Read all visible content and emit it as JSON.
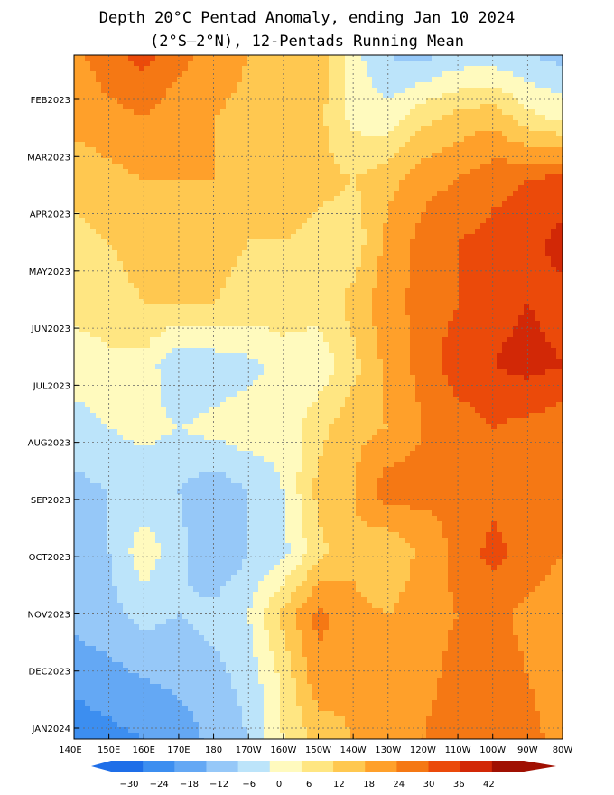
{
  "chart_data": {
    "type": "heatmap",
    "title": "Depth 20°C Pentad Anomaly, ending Jan 10 2024",
    "subtitle": "(2°S–2°N), 12-Pentads Running Mean",
    "x_ticks": [
      "140E",
      "150E",
      "160E",
      "170E",
      "180",
      "170W",
      "160W",
      "150W",
      "140W",
      "130W",
      "120W",
      "110W",
      "100W",
      "90W",
      "80W"
    ],
    "y_ticks": [
      "FEB2023",
      "MAR2023",
      "APR2023",
      "MAY2023",
      "JUN2023",
      "JUL2023",
      "AUG2023",
      "SEP2023",
      "OCT2023",
      "NOV2023",
      "DEC2023",
      "JAN2024"
    ],
    "colorbar_ticks": [
      "−30",
      "−24",
      "−18",
      "−12",
      "−6",
      "0",
      "6",
      "12",
      "18",
      "24",
      "30",
      "36",
      "42"
    ],
    "levels": [
      -30,
      -24,
      -18,
      -12,
      -6,
      0,
      6,
      12,
      18,
      24,
      30,
      36,
      42
    ],
    "level_colors": [
      "#1e6ee8",
      "#3c8ef0",
      "#64a8f4",
      "#96c8f8",
      "#bce4fa",
      "#fffabe",
      "#ffe682",
      "#ffc850",
      "#ffa02a",
      "#f57814",
      "#eb4a0a",
      "#d22806",
      "#a01002"
    ],
    "grid": true,
    "data": {
      "rows": [
        "FEB2023",
        "MAR2023",
        "APR2023",
        "MAY2023",
        "JUN2023",
        "JUL2023",
        "AUG2023",
        "SEP2023",
        "OCT2023",
        "NOV2023",
        "DEC2023",
        "JAN2024"
      ],
      "columns": [
        "140E",
        "150E",
        "160E",
        "170E",
        "180",
        "170W",
        "160W",
        "150W",
        "140W",
        "130W",
        "120W",
        "110W",
        "100W",
        "90W",
        "80W"
      ],
      "values": [
        [
          22,
          28,
          32,
          26,
          22,
          18,
          18,
          16,
          2,
          -6,
          -8,
          -4,
          -4,
          -6,
          -8
        ],
        [
          20,
          22,
          24,
          20,
          18,
          16,
          16,
          14,
          4,
          2,
          10,
          14,
          16,
          8,
          4
        ],
        [
          14,
          16,
          18,
          18,
          18,
          16,
          16,
          14,
          12,
          16,
          22,
          24,
          28,
          30,
          32
        ],
        [
          10,
          12,
          14,
          16,
          14,
          12,
          12,
          10,
          8,
          20,
          26,
          30,
          32,
          34,
          38
        ],
        [
          8,
          10,
          12,
          12,
          12,
          10,
          10,
          8,
          14,
          22,
          26,
          30,
          34,
          36,
          34
        ],
        [
          2,
          4,
          4,
          -6,
          -4,
          -2,
          2,
          2,
          10,
          20,
          26,
          34,
          36,
          38,
          36
        ],
        [
          -2,
          0,
          2,
          0,
          2,
          4,
          2,
          10,
          16,
          18,
          24,
          26,
          30,
          28,
          26
        ],
        [
          -8,
          -6,
          -4,
          -6,
          -10,
          -6,
          0,
          14,
          18,
          28,
          26,
          24,
          28,
          26,
          24
        ],
        [
          -8,
          -6,
          4,
          -4,
          -12,
          -6,
          -2,
          10,
          16,
          12,
          20,
          26,
          32,
          28,
          24
        ],
        [
          -10,
          -8,
          -4,
          -6,
          -4,
          0,
          14,
          26,
          20,
          18,
          22,
          24,
          26,
          22,
          20
        ],
        [
          -16,
          -14,
          -12,
          -10,
          -8,
          -4,
          8,
          22,
          20,
          18,
          22,
          26,
          28,
          24,
          20
        ],
        [
          -22,
          -20,
          -18,
          -16,
          -10,
          -6,
          6,
          14,
          18,
          20,
          24,
          28,
          30,
          26,
          22
        ]
      ]
    }
  }
}
